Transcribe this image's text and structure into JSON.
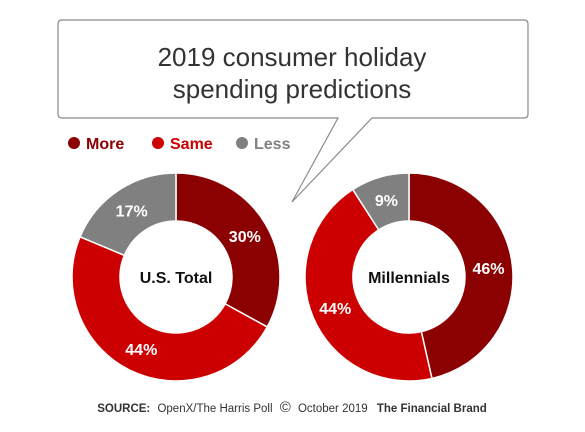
{
  "title_lines": [
    "2019 consumer holiday",
    "spending predictions"
  ],
  "legend": [
    {
      "label": "More",
      "color": "#8b0000"
    },
    {
      "label": "Same",
      "color": "#cc0000"
    },
    {
      "label": "Less",
      "color": "#808080"
    }
  ],
  "chart_data": [
    {
      "type": "pie",
      "center_label": "U.S. Total",
      "categories": [
        "More",
        "Same",
        "Less"
      ],
      "values": [
        30,
        44,
        17
      ],
      "value_labels": [
        "30%",
        "44%",
        "17%"
      ],
      "colors": [
        "#8b0000",
        "#cc0000",
        "#808080"
      ]
    },
    {
      "type": "pie",
      "center_label": "Millennials",
      "categories": [
        "More",
        "Same",
        "Less"
      ],
      "values": [
        46,
        44,
        9
      ],
      "value_labels": [
        "46%",
        "44%",
        "9%"
      ],
      "colors": [
        "#8b0000",
        "#cc0000",
        "#808080"
      ]
    }
  ],
  "source": {
    "label": "SOURCE:",
    "text": "OpenX/The Harris Poll",
    "copyright_symbol": "©",
    "date": "October 2019",
    "brand": "The Financial Brand"
  }
}
